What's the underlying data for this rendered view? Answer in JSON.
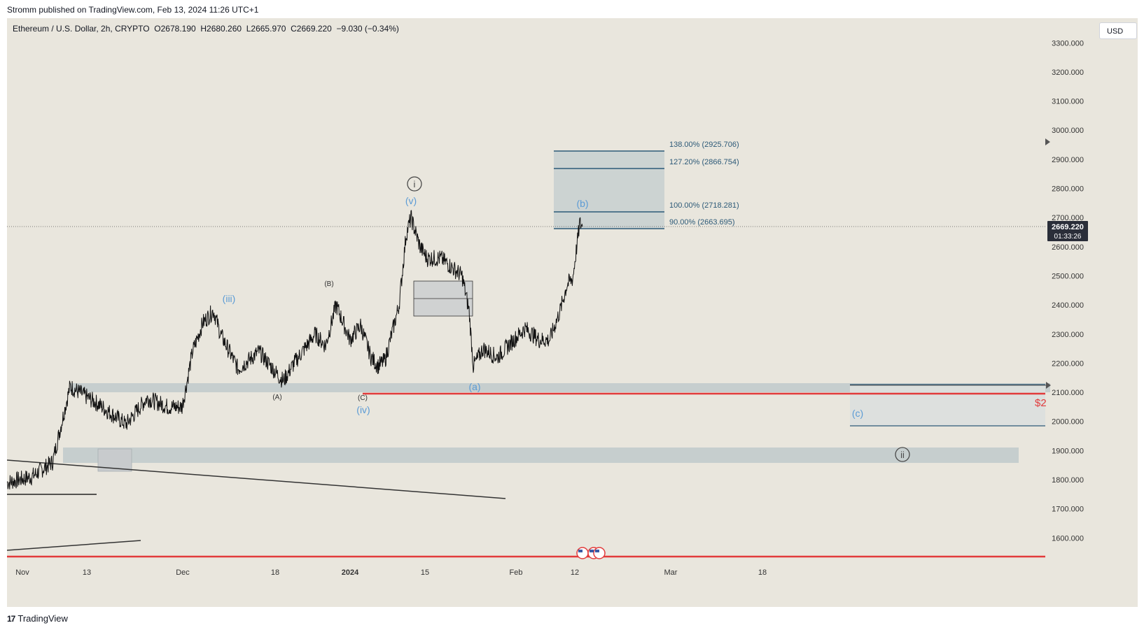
{
  "header": {
    "publish_line": "Stromm published on TradingView.com, Feb 13, 2024 11:26 UTC+1"
  },
  "symbol": {
    "legend": "Ethereum / U.S. Dollar, 2h, CRYPTO  O2678.190  H2680.260  L2665.970  C2669.220  −9.030 (−0.34%)"
  },
  "currency_button": "USD",
  "price_axis": {
    "ticks": [
      "3300.000",
      "3200.000",
      "3100.000",
      "3000.000",
      "2900.000",
      "2800.000",
      "2700.000",
      "2600.000",
      "2500.000",
      "2400.000",
      "2300.000",
      "2200.000",
      "2100.000",
      "2000.000",
      "1900.000",
      "1800.000",
      "1700.000",
      "1600.000"
    ],
    "last_price": "2669.220",
    "countdown": "01:33:26",
    "range": [
      1540,
      3322
    ]
  },
  "time_axis": {
    "ticks": [
      "Nov",
      "13",
      "Dec",
      "18",
      "2024",
      "15",
      "Feb",
      "12",
      "Mar",
      "18"
    ],
    "bold_tick": "2024"
  },
  "fib_levels": [
    {
      "label": "138.00% (2925.706)",
      "price": 2925.706
    },
    {
      "label": "127.20% (2866.754)",
      "price": 2866.754
    },
    {
      "label": "100.00% (2718.281)",
      "price": 2718.281
    },
    {
      "label": "90.00% (2663.695)",
      "price": 2663.695
    }
  ],
  "wave_labels": [
    {
      "text": "i",
      "circled": true,
      "color": "#4a4a4a"
    },
    {
      "text": "(v)",
      "color": "#5b9bd5"
    },
    {
      "text": "(iii)",
      "color": "#5b9bd5"
    },
    {
      "text": "(B)",
      "color": "#333333"
    },
    {
      "text": "(A)",
      "color": "#333333"
    },
    {
      "text": "(C)",
      "color": "#333333"
    },
    {
      "text": "(iv)",
      "color": "#5b9bd5"
    },
    {
      "text": "(b)",
      "color": "#5b9bd5"
    },
    {
      "text": "(a)",
      "color": "#5b9bd5"
    },
    {
      "text": "(c)",
      "color": "#5b9bd5"
    },
    {
      "text": "ii",
      "circled": true,
      "color": "#4a4a4a"
    }
  ],
  "red_label": "$2",
  "chart_data": {
    "type": "line",
    "title": "",
    "xlabel": "",
    "ylabel": "",
    "series": [
      {
        "name": "",
        "x": [
          "Nov 1",
          "Nov 4",
          "Nov 8",
          "Nov 11",
          "Nov 15",
          "Nov 19",
          "Nov 22",
          "Nov 25",
          "Nov 28",
          "Dec 1",
          "Dec 4",
          "Dec 6",
          "Dec 8",
          "Dec 9",
          "Dec 11",
          "Dec 13",
          "Dec 16",
          "Dec 18",
          "Dec 20",
          "Dec 23",
          "Dec 25",
          "Dec 28",
          "Dec 30",
          "Jan 1",
          "Jan 3",
          "Jan 5",
          "Jan 7",
          "Jan 9",
          "Jan 11",
          "Jan 12",
          "Jan 13",
          "Jan 14",
          "Jan 16",
          "Jan 17",
          "Jan 19",
          "Jan 20",
          "Jan 22",
          "Jan 23",
          "Jan 26",
          "Jan 29",
          "Feb 1",
          "Feb 3",
          "Feb 6",
          "Feb 8",
          "Feb 10",
          "Feb 11",
          "Feb 12",
          "Feb 13"
        ],
        "values": [
          1790,
          1810,
          1860,
          2120,
          2060,
          1990,
          2080,
          2050,
          2050,
          2110,
          2240,
          2340,
          2380,
          2300,
          2180,
          2240,
          2150,
          2140,
          2200,
          2300,
          2260,
          2400,
          2280,
          2330,
          2220,
          2190,
          2210,
          2400,
          2640,
          2700,
          2600,
          2560,
          2560,
          2520,
          2500,
          2380,
          2190,
          2250,
          2220,
          2270,
          2320,
          2280,
          2280,
          2380,
          2470,
          2490,
          2680,
          2669.22
        ]
      }
    ],
    "ylim": [
      1540,
      3322
    ]
  }
}
